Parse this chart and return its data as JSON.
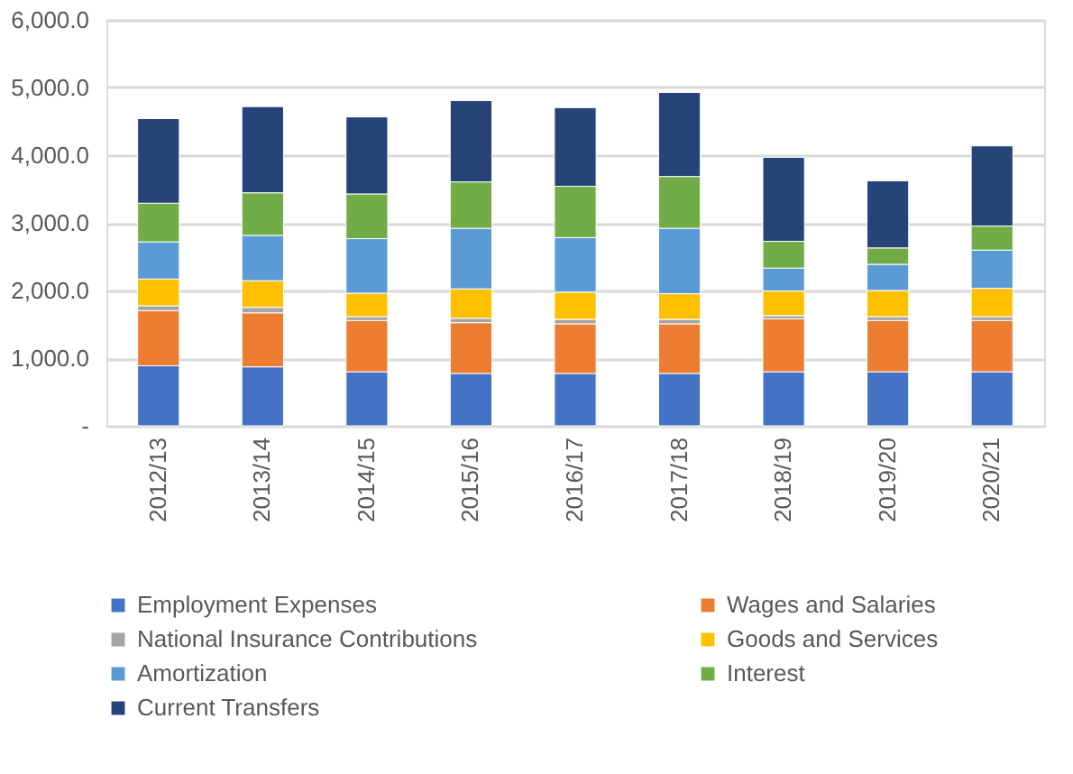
{
  "chart_data": {
    "type": "bar",
    "stacked": true,
    "categories": [
      "2012/13",
      "2013/14",
      "2014/15",
      "2015/16",
      "2016/17",
      "2017/18",
      "2018/19",
      "2019/20",
      "2020/21"
    ],
    "series": [
      {
        "name": "Employment Expenses",
        "color": "#4472c4",
        "values": [
          887,
          871,
          798,
          774,
          774,
          774,
          798,
          798,
          798
        ]
      },
      {
        "name": "Wages and   Salaries",
        "color": "#ed7d31",
        "values": [
          815,
          798,
          758,
          750,
          734,
          734,
          783,
          758,
          758
        ]
      },
      {
        "name": "National Insurance Contributions",
        "color": "#a5a5a5",
        "values": [
          72,
          81,
          57,
          65,
          65,
          65,
          48,
          57,
          57
        ]
      },
      {
        "name": "Goods and Services",
        "color": "#ffc000",
        "values": [
          395,
          395,
          347,
          435,
          403,
          379,
          363,
          387,
          419
        ]
      },
      {
        "name": "Amortization",
        "color": "#5b9bd5",
        "values": [
          549,
          670,
          806,
          895,
          806,
          967,
          339,
          387,
          565
        ]
      },
      {
        "name": "Interest",
        "color": "#70ad47",
        "values": [
          572,
          629,
          661,
          686,
          758,
          766,
          395,
          242,
          355
        ]
      },
      {
        "name": "Current Transfers",
        "color": "#264478",
        "values": [
          1250,
          1274,
          1138,
          1201,
          1162,
          1242,
          1242,
          992,
          1185
        ]
      }
    ],
    "ylim": [
      0,
      6000
    ],
    "yticks": [
      {
        "value": 0,
        "label": "-"
      },
      {
        "value": 1000,
        "label": "1,000.0"
      },
      {
        "value": 2000,
        "label": "2,000.0"
      },
      {
        "value": 3000,
        "label": "3,000.0"
      },
      {
        "value": 4000,
        "label": "4,000.0"
      },
      {
        "value": 5000,
        "label": "5,000.0"
      },
      {
        "value": 6000,
        "label": "6,000.0"
      }
    ],
    "grid": "y",
    "legend": "bottom"
  }
}
